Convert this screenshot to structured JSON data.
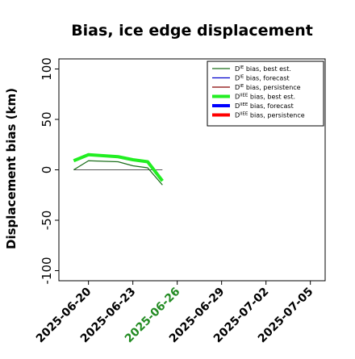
{
  "chart_data": {
    "type": "line",
    "title": "Bias, ice edge displacement",
    "ylabel": "Displacement bias (km)",
    "xlabel": "",
    "ylim": [
      -110,
      110
    ],
    "xlim": [
      "2025-06-18",
      "2025-07-06"
    ],
    "yticks": [
      100,
      50,
      0,
      -50,
      -100
    ],
    "xticks": [
      {
        "date": "2025-06-20",
        "label": "2025-06-20",
        "color": "#000000"
      },
      {
        "date": "2025-06-23",
        "label": "2025-06-23",
        "color": "#000000"
      },
      {
        "date": "2025-06-26",
        "label": "2025-06-26",
        "color": "#228B22"
      },
      {
        "date": "2025-06-29",
        "label": "2025-06-29",
        "color": "#000000"
      },
      {
        "date": "2025-07-02",
        "label": "2025-07-02",
        "color": "#000000"
      },
      {
        "date": "2025-07-05",
        "label": "2025-07-05",
        "color": "#000000"
      }
    ],
    "legend_position": "top-right",
    "grid": false,
    "series": [
      {
        "name_sup": "IE",
        "name_rest": " bias, best est.",
        "color": "#1a6e1a",
        "width": 1.3,
        "x": [
          "2025-06-19",
          "2025-06-20",
          "2025-06-22",
          "2025-06-23",
          "2025-06-24",
          "2025-06-25"
        ],
        "y": [
          0,
          9,
          8,
          4,
          2,
          -15
        ]
      },
      {
        "name_sup": "IE",
        "name_rest": " bias, forecast",
        "color": "#0000cc",
        "width": 1.3,
        "x": [],
        "y": []
      },
      {
        "name_sup": "IE",
        "name_rest": " bias, persistence",
        "color": "#880000",
        "width": 1.3,
        "x": [],
        "y": []
      },
      {
        "name_sup": "IIEE",
        "name_rest": " bias, best est.",
        "color": "#22ee22",
        "width": 4,
        "x": [
          "2025-06-19",
          "2025-06-20",
          "2025-06-21",
          "2025-06-22",
          "2025-06-23",
          "2025-06-24",
          "2025-06-25"
        ],
        "y": [
          9,
          15,
          14,
          13,
          10,
          8,
          -11
        ]
      },
      {
        "name_sup": "IIEE",
        "name_rest": " bias, forecast",
        "color": "#0000ff",
        "width": 4,
        "x": [],
        "y": []
      },
      {
        "name_sup": "IIEE",
        "name_rest": " bias, persistence",
        "color": "#ff0000",
        "width": 4,
        "x": [],
        "y": []
      }
    ],
    "reference_line": {
      "color": "#555555",
      "x": [
        "2025-06-19",
        "2025-06-25"
      ],
      "y": [
        0,
        0
      ]
    }
  }
}
